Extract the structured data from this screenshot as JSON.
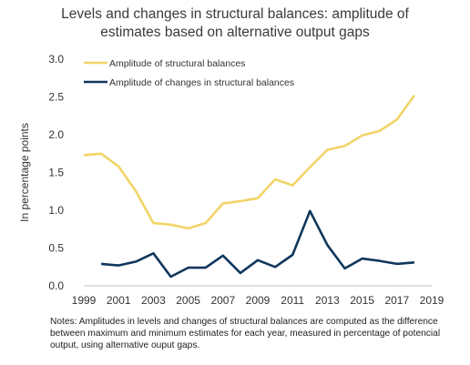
{
  "chart_data": {
    "type": "line",
    "title": [
      "Levels and changes in structural balances: amplitude of",
      "estimates based on alternative output gaps"
    ],
    "ylabel": "In percentage points",
    "xlabel": "",
    "ylim": [
      0.0,
      3.0
    ],
    "xlim": [
      1999,
      2019
    ],
    "y_ticks": [
      "0.0",
      "0.5",
      "1.0",
      "1.5",
      "2.0",
      "2.5",
      "3.0"
    ],
    "x_ticks": [
      "1999",
      "2001",
      "2003",
      "2005",
      "2007",
      "2009",
      "2011",
      "2013",
      "2015",
      "2017",
      "2019"
    ],
    "grid": false,
    "legend_position": "top-left",
    "series": [
      {
        "name": "Amplitude of structural balances",
        "color": "#F2D468",
        "x": [
          1999,
          2000,
          2001,
          2002,
          2003,
          2004,
          2005,
          2006,
          2007,
          2008,
          2009,
          2010,
          2011,
          2012,
          2013,
          2014,
          2015,
          2016,
          2017,
          2018
        ],
        "values": [
          1.73,
          1.75,
          1.58,
          1.25,
          0.83,
          0.81,
          0.76,
          0.83,
          1.09,
          1.12,
          1.16,
          1.41,
          1.33,
          1.57,
          1.8,
          1.85,
          1.99,
          2.05,
          2.2,
          2.52
        ]
      },
      {
        "name": "Amplitude of changes in structural balances",
        "color": "#10375C",
        "x": [
          2000,
          2001,
          2002,
          2003,
          2004,
          2005,
          2006,
          2007,
          2008,
          2009,
          2010,
          2011,
          2012,
          2013,
          2014,
          2015,
          2016,
          2017,
          2018
        ],
        "values": [
          0.29,
          0.27,
          0.32,
          0.43,
          0.12,
          0.24,
          0.24,
          0.4,
          0.17,
          0.34,
          0.25,
          0.41,
          0.99,
          0.54,
          0.23,
          0.36,
          0.33,
          0.29,
          0.31
        ]
      }
    ],
    "notes": "Notes: Amplitudes in levels and changes of structural balances are computed as the difference between maximum and minimum estimates for each year, measured in percentage of potencial output, using alternative ouput gaps."
  }
}
